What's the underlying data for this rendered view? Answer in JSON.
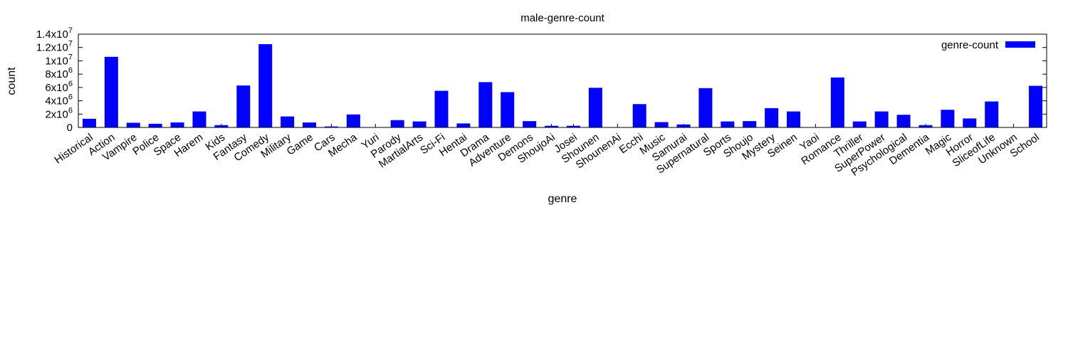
{
  "chart_data": {
    "type": "bar",
    "title": "male-genre-count",
    "xlabel": "genre",
    "ylabel": "count",
    "ylim": [
      0,
      14000000
    ],
    "yticks": [
      {
        "value": 0,
        "mantissa": "0",
        "exponent": ""
      },
      {
        "value": 2000000,
        "mantissa": "2x10",
        "exponent": "6"
      },
      {
        "value": 4000000,
        "mantissa": "4x10",
        "exponent": "6"
      },
      {
        "value": 6000000,
        "mantissa": "6x10",
        "exponent": "6"
      },
      {
        "value": 8000000,
        "mantissa": "8x10",
        "exponent": "6"
      },
      {
        "value": 10000000,
        "mantissa": "1x10",
        "exponent": "7"
      },
      {
        "value": 12000000,
        "mantissa": "1.2x10",
        "exponent": "7"
      },
      {
        "value": 14000000,
        "mantissa": "1.4x10",
        "exponent": "7"
      }
    ],
    "grid": false,
    "legend_position": "top-right",
    "bar_color": "#0000ff",
    "categories": [
      "Historical",
      "Action",
      "Vampire",
      "Police",
      "Space",
      "Harem",
      "Kids",
      "Fantasy",
      "Comedy",
      "Military",
      "Game",
      "Cars",
      "Mecha",
      "Yuri",
      "Parody",
      "MartialArts",
      "Sci-Fi",
      "Hentai",
      "Drama",
      "Adventure",
      "Demons",
      "ShoujoAi",
      "Josei",
      "Shounen",
      "ShounenAi",
      "Ecchi",
      "Music",
      "Samurai",
      "Supernatural",
      "Sports",
      "Shoujo",
      "Mystery",
      "Seinen",
      "Yaoi",
      "Romance",
      "Thriller",
      "SuperPower",
      "Psychological",
      "Dementia",
      "Magic",
      "Horror",
      "SliceofLife",
      "Unknown",
      "School"
    ],
    "series": [
      {
        "name": "genre-count",
        "values": [
          1300000,
          10600000,
          700000,
          550000,
          750000,
          2400000,
          350000,
          6300000,
          12500000,
          1650000,
          750000,
          150000,
          1950000,
          0,
          1100000,
          900000,
          5500000,
          600000,
          6800000,
          5300000,
          950000,
          250000,
          250000,
          5950000,
          0,
          3500000,
          800000,
          450000,
          5900000,
          900000,
          950000,
          2900000,
          2400000,
          0,
          7500000,
          900000,
          2400000,
          1900000,
          350000,
          2650000,
          1350000,
          3900000,
          0,
          6250000
        ]
      }
    ]
  }
}
